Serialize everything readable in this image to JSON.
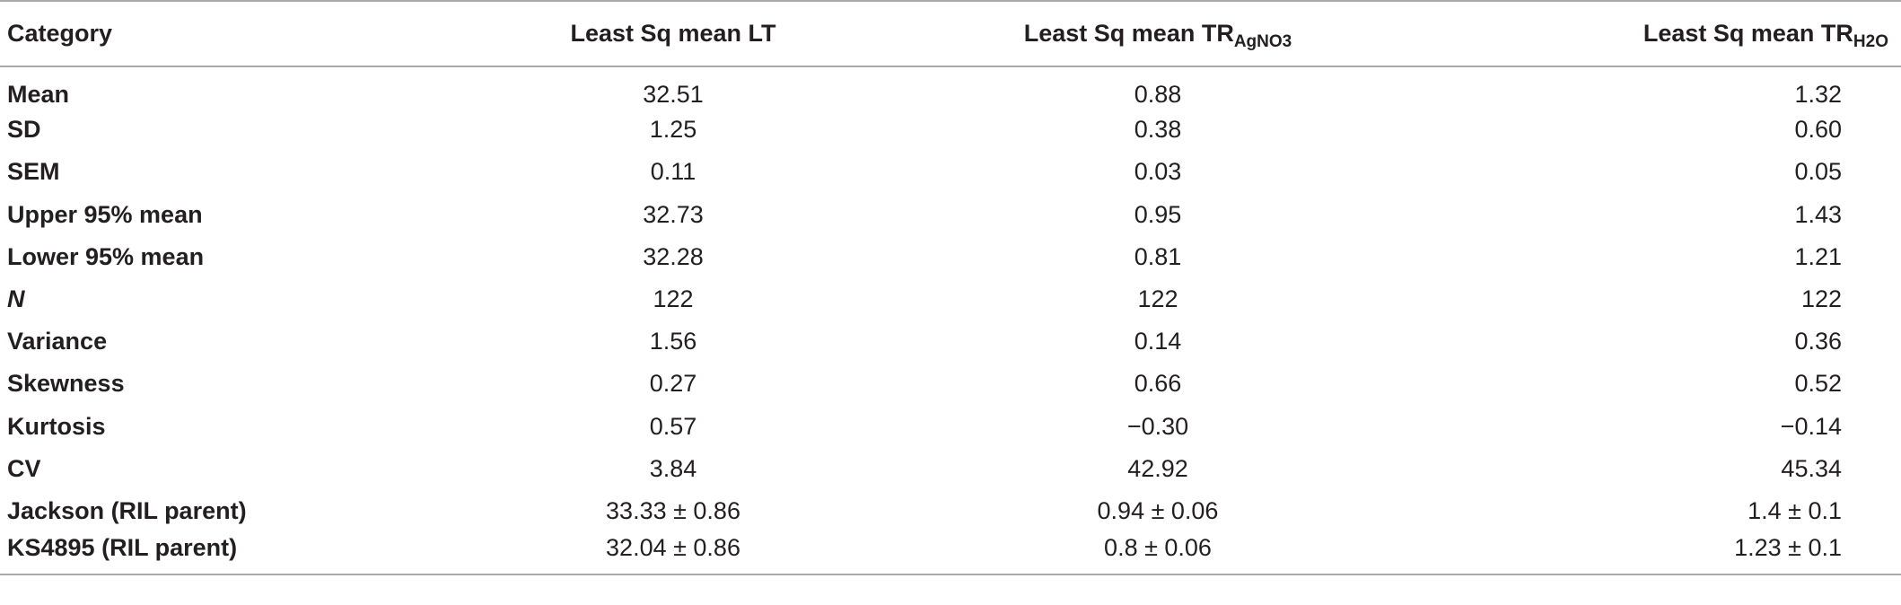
{
  "table": {
    "headers": {
      "category": "Category",
      "lt": "Least Sq mean LT",
      "tr_agno3_main": "Least Sq mean TR",
      "tr_agno3_sub": "AgNO3",
      "tr_h2o_main": "Least Sq mean TR",
      "tr_h2o_sub": "H2O"
    },
    "rows": [
      {
        "label": "Mean",
        "lt": "32.51",
        "agno3": "0.88",
        "h2o": "1.32"
      },
      {
        "label": "SD",
        "lt": "1.25",
        "agno3": "0.38",
        "h2o": "0.60"
      },
      {
        "label": "SEM",
        "lt": "0.11",
        "agno3": "0.03",
        "h2o": "0.05"
      },
      {
        "label": "Upper 95% mean",
        "lt": "32.73",
        "agno3": "0.95",
        "h2o": "1.43"
      },
      {
        "label": "Lower 95% mean",
        "lt": "32.28",
        "agno3": "0.81",
        "h2o": "1.21"
      },
      {
        "label": "N",
        "lt": "122",
        "agno3": "122",
        "h2o": "122"
      },
      {
        "label": "Variance",
        "lt": "1.56",
        "agno3": "0.14",
        "h2o": "0.36"
      },
      {
        "label": "Skewness",
        "lt": "0.27",
        "agno3": "0.66",
        "h2o": "0.52"
      },
      {
        "label": "Kurtosis",
        "lt": "0.57",
        "agno3": "−0.30",
        "h2o": "−0.14"
      },
      {
        "label": "CV",
        "lt": "3.84",
        "agno3": "42.92",
        "h2o": "45.34"
      },
      {
        "label": "Jackson (RIL parent)",
        "lt": "33.33 ± 0.86",
        "agno3": "0.94 ± 0.06",
        "h2o": "1.4 ± 0.1"
      },
      {
        "label": "KS4895 (RIL parent)",
        "lt": "32.04 ± 0.86",
        "agno3": "0.8 ± 0.06",
        "h2o": "1.23 ± 0.1"
      }
    ]
  }
}
